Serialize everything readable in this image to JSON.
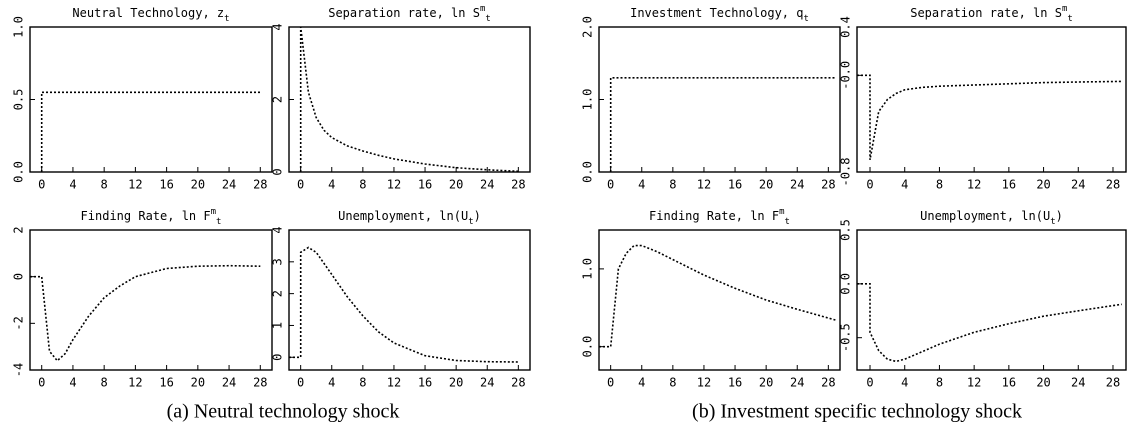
{
  "chart_data": [
    {
      "type": "line",
      "title": [
        {
          "text": "Neutral Technology, z"
        },
        {
          "text": "t",
          "shift": "sub"
        }
      ],
      "x": [
        0,
        0,
        28
      ],
      "series": [
        {
          "color": "#000000",
          "values": [
            0,
            0.55,
            0.55
          ]
        }
      ],
      "xlim": [
        -1.5,
        29.5
      ],
      "xticks": [
        0,
        4,
        8,
        12,
        16,
        20,
        24,
        28
      ],
      "ylim": [
        0,
        1
      ],
      "yticks": [
        {
          "value": 0,
          "label": "0.0"
        },
        0.5,
        {
          "value": 1,
          "label": "1.0"
        }
      ]
    },
    {
      "type": "line",
      "title": [
        {
          "text": "Separation rate, ln S"
        },
        {
          "text": "m",
          "shift": "sup"
        },
        {
          "text": "t",
          "shift": "sub"
        }
      ],
      "x": [
        0,
        0,
        1,
        2,
        3,
        4,
        6,
        8,
        10,
        12,
        16,
        20,
        24,
        28
      ],
      "series": [
        {
          "color": "#000000",
          "values": [
            0,
            4,
            2.2,
            1.5,
            1.15,
            0.95,
            0.72,
            0.58,
            0.46,
            0.36,
            0.22,
            0.12,
            0.06,
            0.02
          ]
        }
      ],
      "xlim": [
        -1.5,
        29.5
      ],
      "xticks": [
        0,
        4,
        8,
        12,
        16,
        20,
        24,
        28
      ],
      "ylim": [
        0,
        4
      ],
      "yticks": [
        0,
        2,
        4
      ]
    },
    {
      "type": "line",
      "title": [
        {
          "text": "Investment Technology, q"
        },
        {
          "text": "t",
          "shift": "sub"
        }
      ],
      "x": [
        0,
        0,
        29
      ],
      "series": [
        {
          "color": "#000000",
          "values": [
            0,
            1.3,
            1.3
          ]
        }
      ],
      "xlim": [
        -1.5,
        29.5
      ],
      "xticks": [
        0,
        4,
        8,
        12,
        16,
        20,
        24,
        28
      ],
      "ylim": [
        0,
        2
      ],
      "yticks": [
        {
          "value": 0,
          "label": "0.0"
        },
        {
          "value": 1,
          "label": "1.0"
        },
        {
          "value": 2,
          "label": "2.0"
        }
      ]
    },
    {
      "type": "line",
      "title": [
        {
          "text": "Separation rate, ln S"
        },
        {
          "text": "m",
          "shift": "sup"
        },
        {
          "text": "t",
          "shift": "sub"
        }
      ],
      "x": [
        -1.5,
        0,
        0,
        1,
        2,
        3,
        4,
        6,
        8,
        12,
        16,
        20,
        24,
        29
      ],
      "series": [
        {
          "color": "#000000",
          "values": [
            0,
            0,
            -0.7,
            -0.3,
            -0.2,
            -0.15,
            -0.12,
            -0.1,
            -0.09,
            -0.08,
            -0.07,
            -0.06,
            -0.055,
            -0.05
          ]
        }
      ],
      "xlim": [
        -1.5,
        29.5
      ],
      "xticks": [
        0,
        4,
        8,
        12,
        16,
        20,
        24,
        28
      ],
      "ylim": [
        -0.8,
        0.4
      ],
      "yticks": [
        -0.8,
        {
          "value": 0,
          "label": "-0.0"
        },
        0.4
      ]
    },
    {
      "type": "line",
      "title": [
        {
          "text": "Finding Rate, ln F"
        },
        {
          "text": "m",
          "shift": "sup"
        },
        {
          "text": "t",
          "shift": "sub"
        }
      ],
      "x": [
        -1.5,
        0,
        1,
        2,
        3,
        4,
        6,
        8,
        10,
        12,
        16,
        20,
        24,
        28
      ],
      "series": [
        {
          "color": "#000000",
          "values": [
            0,
            0,
            -3.2,
            -3.6,
            -3.3,
            -2.7,
            -1.7,
            -0.9,
            -0.4,
            0,
            0.35,
            0.45,
            0.47,
            0.45
          ]
        }
      ],
      "xlim": [
        -1.5,
        29.5
      ],
      "xticks": [
        0,
        4,
        8,
        12,
        16,
        20,
        24,
        28
      ],
      "ylim": [
        -4,
        2
      ],
      "yticks": [
        -4,
        -2,
        0,
        2
      ]
    },
    {
      "type": "line",
      "title": [
        {
          "text": "Unemployment, ln(U"
        },
        {
          "text": "t",
          "shift": "sub"
        },
        {
          "text": ")"
        }
      ],
      "x": [
        -1.5,
        0,
        0,
        1,
        2,
        4,
        6,
        8,
        10,
        12,
        16,
        20,
        24,
        28
      ],
      "series": [
        {
          "color": "#000000",
          "values": [
            0,
            0,
            3.3,
            3.45,
            3.3,
            2.6,
            1.9,
            1.3,
            0.8,
            0.45,
            0.05,
            -0.1,
            -0.14,
            -0.15
          ]
        }
      ],
      "xlim": [
        -1.5,
        29.5
      ],
      "xticks": [
        0,
        4,
        8,
        12,
        16,
        20,
        24,
        28
      ],
      "ylim": [
        -0.4,
        4
      ],
      "yticks": [
        0,
        1,
        2,
        3,
        4
      ]
    },
    {
      "type": "line",
      "title": [
        {
          "text": "Finding Rate, ln F"
        },
        {
          "text": "m",
          "shift": "sup"
        },
        {
          "text": "t",
          "shift": "sub"
        }
      ],
      "x": [
        -1.5,
        0,
        1,
        2,
        3,
        4,
        6,
        8,
        12,
        16,
        20,
        24,
        29
      ],
      "series": [
        {
          "color": "#000000",
          "values": [
            0,
            0,
            1.0,
            1.2,
            1.3,
            1.3,
            1.22,
            1.12,
            0.92,
            0.75,
            0.6,
            0.48,
            0.34
          ]
        }
      ],
      "xlim": [
        -1.5,
        29.5
      ],
      "xticks": [
        0,
        4,
        8,
        12,
        16,
        20,
        24,
        28
      ],
      "ylim": [
        -0.3,
        1.5
      ],
      "yticks": [
        {
          "value": 0,
          "label": "0.0"
        },
        {
          "value": 1,
          "label": "1.0"
        }
      ]
    },
    {
      "type": "line",
      "title": [
        {
          "text": "Unemployment, ln(U"
        },
        {
          "text": "t",
          "shift": "sub"
        },
        {
          "text": ")"
        }
      ],
      "x": [
        -1.5,
        0,
        0,
        1,
        2,
        3,
        4,
        6,
        8,
        12,
        16,
        20,
        24,
        29
      ],
      "series": [
        {
          "color": "#000000",
          "values": [
            0,
            0,
            -0.45,
            -0.62,
            -0.7,
            -0.72,
            -0.7,
            -0.63,
            -0.56,
            -0.45,
            -0.37,
            -0.3,
            -0.25,
            -0.19
          ]
        }
      ],
      "xlim": [
        -1.5,
        29.5
      ],
      "xticks": [
        0,
        4,
        8,
        12,
        16,
        20,
        24,
        28
      ],
      "ylim": [
        -0.8,
        0.5
      ],
      "yticks": [
        -0.5,
        {
          "value": 0,
          "label": "0.0"
        },
        0.5
      ]
    }
  ],
  "captions": [
    "(a) Neutral technology shock",
    "(b) Investment specific technology shock"
  ]
}
